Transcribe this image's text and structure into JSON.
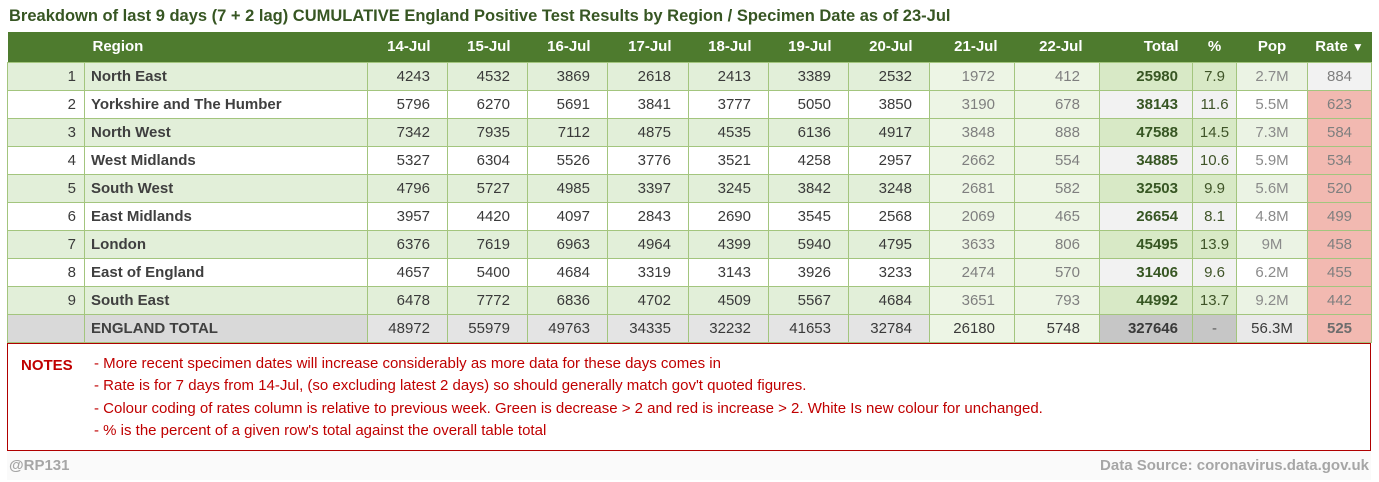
{
  "chart_data": {
    "type": "table",
    "title": "Breakdown of last 9 days (7 + 2 lag) CUMULATIVE England Positive Test Results by Region / Specimen Date as of 23-Jul",
    "columns": [
      "Region",
      "14-Jul",
      "15-Jul",
      "16-Jul",
      "17-Jul",
      "18-Jul",
      "19-Jul",
      "20-Jul",
      "21-Jul",
      "22-Jul",
      "Total",
      "%",
      "Pop",
      "Rate"
    ],
    "sort_icon": "▼",
    "sorted_by": "Rate descending",
    "lag_columns": [
      "21-Jul",
      "22-Jul"
    ],
    "rows": [
      {
        "num": 1,
        "region": "North East",
        "daily": [
          4243,
          4532,
          3869,
          2618,
          2413,
          3389,
          2532,
          1972,
          412
        ],
        "total": 25980,
        "pct": "7.9",
        "pop": "2.7M",
        "rate": 884,
        "rate_status": "unchanged"
      },
      {
        "num": 2,
        "region": "Yorkshire and The Humber",
        "daily": [
          5796,
          6270,
          5691,
          3841,
          3777,
          5050,
          3850,
          3190,
          678
        ],
        "total": 38143,
        "pct": "11.6",
        "pop": "5.5M",
        "rate": 623,
        "rate_status": "increase"
      },
      {
        "num": 3,
        "region": "North West",
        "daily": [
          7342,
          7935,
          7112,
          4875,
          4535,
          6136,
          4917,
          3848,
          888
        ],
        "total": 47588,
        "pct": "14.5",
        "pop": "7.3M",
        "rate": 584,
        "rate_status": "increase"
      },
      {
        "num": 4,
        "region": "West Midlands",
        "daily": [
          5327,
          6304,
          5526,
          3776,
          3521,
          4258,
          2957,
          2662,
          554
        ],
        "total": 34885,
        "pct": "10.6",
        "pop": "5.9M",
        "rate": 534,
        "rate_status": "increase"
      },
      {
        "num": 5,
        "region": "South West",
        "daily": [
          4796,
          5727,
          4985,
          3397,
          3245,
          3842,
          3248,
          2681,
          582
        ],
        "total": 32503,
        "pct": "9.9",
        "pop": "5.6M",
        "rate": 520,
        "rate_status": "increase"
      },
      {
        "num": 6,
        "region": "East Midlands",
        "daily": [
          3957,
          4420,
          4097,
          2843,
          2690,
          3545,
          2568,
          2069,
          465
        ],
        "total": 26654,
        "pct": "8.1",
        "pop": "4.8M",
        "rate": 499,
        "rate_status": "increase"
      },
      {
        "num": 7,
        "region": "London",
        "daily": [
          6376,
          7619,
          6963,
          4964,
          4399,
          5940,
          4795,
          3633,
          806
        ],
        "total": 45495,
        "pct": "13.9",
        "pop": "9M",
        "rate": 458,
        "rate_status": "increase"
      },
      {
        "num": 8,
        "region": "East of England",
        "daily": [
          4657,
          5400,
          4684,
          3319,
          3143,
          3926,
          3233,
          2474,
          570
        ],
        "total": 31406,
        "pct": "9.6",
        "pop": "6.2M",
        "rate": 455,
        "rate_status": "increase"
      },
      {
        "num": 9,
        "region": "South East",
        "daily": [
          6478,
          7772,
          6836,
          4702,
          4509,
          5567,
          4684,
          3651,
          793
        ],
        "total": 44992,
        "pct": "13.7",
        "pop": "9.2M",
        "rate": 442,
        "rate_status": "increase"
      }
    ],
    "total_row": {
      "label": "ENGLAND TOTAL",
      "daily": [
        48972,
        55979,
        49763,
        34335,
        32232,
        41653,
        32784,
        26180,
        5748
      ],
      "total": 327646,
      "pct": "-",
      "pop": "56.3M",
      "rate": 525,
      "rate_status": "increase"
    },
    "notes_label": "NOTES",
    "notes": [
      "- More recent specimen dates will increase considerably as more data for these days comes in",
      "- Rate is for 7 days from 14-Jul, (so excluding latest 2 days) so should generally match gov't quoted figures.",
      "- Colour coding of rates column is relative to previous week. Green is decrease > 2 and red is increase > 2. White Is new colour for unchanged.",
      "- % is the percent of a given row's total against the overall table total"
    ],
    "colors": {
      "header_green": "#4e7b2e",
      "row_green": "#e2efd9",
      "title_green": "#375623",
      "rate_increase_red": "#f2b9b1",
      "rate_unchanged_white": "#f2f2f2",
      "note_red": "#c00000"
    }
  },
  "footer": {
    "handle": "@RP131",
    "source": "Data Source: coronavirus.data.gov.uk"
  }
}
